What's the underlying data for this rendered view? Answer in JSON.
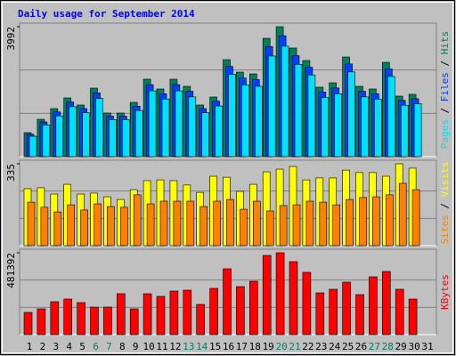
{
  "chart_data": [
    {
      "type": "bar",
      "title": "Daily usage for September 2014",
      "ylim": [
        0,
        3992
      ],
      "yticks": [
        3992
      ],
      "legend_separator": " / ",
      "series": [
        {
          "name": "Hits",
          "color": "#00805C",
          "values": [
            738,
            1148,
            1476,
            1805,
            1586,
            2105,
            1340,
            1340,
            1668,
            2379,
            2078,
            2379,
            2160,
            1586,
            1832,
            2980,
            2597,
            2543,
            3636,
            3992,
            3336,
            2953,
            2133,
            2269,
            3062,
            2160,
            2078,
            2898,
            1859,
            1914,
            null
          ]
        },
        {
          "name": "Files",
          "color": "#0040FF",
          "values": [
            686,
            1068,
            1373,
            1679,
            1475,
            1958,
            1246,
            1246,
            1551,
            2212,
            1933,
            2212,
            2009,
            1475,
            1704,
            2771,
            2415,
            2365,
            3381,
            3713,
            3102,
            2746,
            1984,
            2110,
            2848,
            2009,
            1933,
            2695,
            1729,
            1780,
            null
          ]
        },
        {
          "name": "Pages",
          "color": "#00E0FF",
          "values": [
            627,
            976,
            1255,
            1534,
            1348,
            1789,
            1139,
            1139,
            1418,
            2022,
            1766,
            2022,
            1836,
            1348,
            1557,
            2533,
            2207,
            2162,
            3091,
            3393,
            2836,
            2510,
            1813,
            1929,
            2603,
            1836,
            1766,
            2463,
            1580,
            1627,
            null
          ]
        }
      ]
    },
    {
      "type": "bar",
      "ylim": [
        0,
        335
      ],
      "yticks": [
        335
      ],
      "legend_separator": " / ",
      "series": [
        {
          "name": "Visits",
          "color": "#FFFF00",
          "values": [
            233,
            237,
            211,
            251,
            211,
            215,
            200,
            189,
            229,
            266,
            269,
            266,
            248,
            218,
            284,
            280,
            222,
            251,
            302,
            313,
            324,
            269,
            277,
            277,
            309,
            299,
            299,
            284,
            335,
            317,
            null
          ]
        },
        {
          "name": "Sites",
          "color": "#FF8000",
          "values": [
            178,
            157,
            138,
            167,
            146,
            171,
            160,
            157,
            208,
            171,
            182,
            182,
            182,
            160,
            182,
            189,
            149,
            182,
            142,
            164,
            167,
            182,
            178,
            167,
            189,
            197,
            200,
            208,
            255,
            229,
            null
          ]
        }
      ]
    },
    {
      "type": "bar",
      "ylim": [
        0,
        481392
      ],
      "yticks": [
        481392
      ],
      "legend_separator": " / ",
      "categories": [
        "1",
        "2",
        "3",
        "4",
        "5",
        "6",
        "7",
        "8",
        "9",
        "10",
        "11",
        "12",
        "13",
        "14",
        "15",
        "16",
        "17",
        "18",
        "19",
        "20",
        "21",
        "22",
        "23",
        "24",
        "25",
        "26",
        "27",
        "28",
        "29",
        "30",
        "31"
      ],
      "category_colors": [
        "#000",
        "#000",
        "#000",
        "#000",
        "#000",
        "#008060",
        "#008060",
        "#000",
        "#000",
        "#000",
        "#000",
        "#000",
        "#008060",
        "#008060",
        "#000",
        "#000",
        "#000",
        "#000",
        "#000",
        "#008060",
        "#008060",
        "#000",
        "#000",
        "#000",
        "#000",
        "#000",
        "#008060",
        "#008060",
        "#000",
        "#000",
        "#000"
      ],
      "series": [
        {
          "name": "KBytes",
          "color": "#FF0000",
          "values": [
            130800,
            151700,
            193600,
            209300,
            188400,
            162200,
            162200,
            240700,
            151700,
            240700,
            225000,
            256400,
            261600,
            177900,
            272100,
            387200,
            282600,
            314000,
            465700,
            481392,
            429100,
            366300,
            245900,
            266900,
            308700,
            235500,
            340100,
            371500,
            266900,
            209300,
            null
          ]
        }
      ]
    }
  ]
}
